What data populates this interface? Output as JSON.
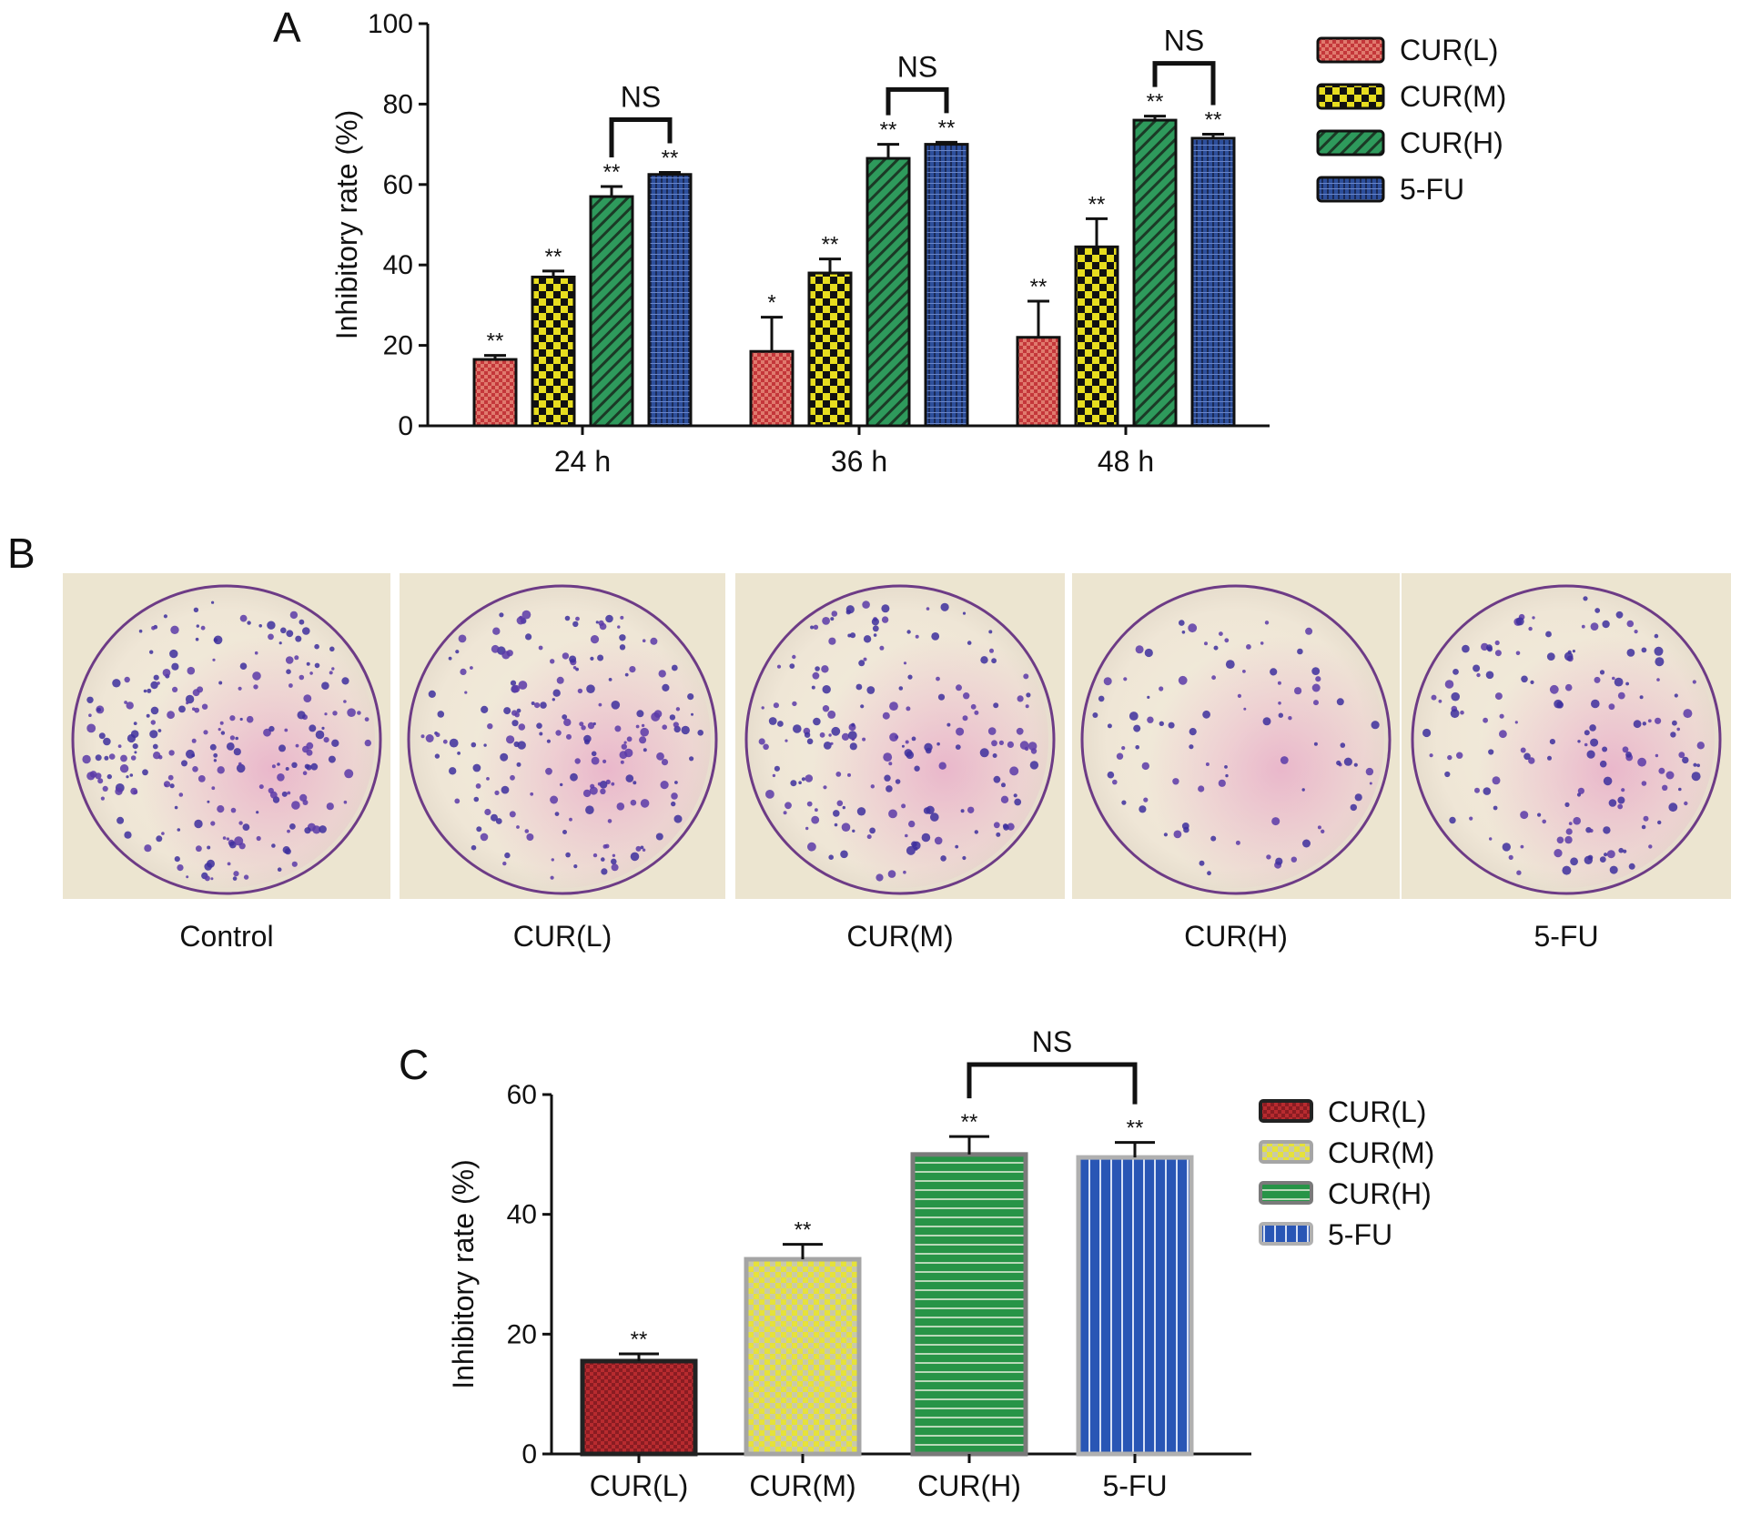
{
  "colors": {
    "cur_l": "#c4373a",
    "cur_m": "#e7dd1f",
    "cur_h": "#2e9a5c",
    "fu5": "#2d4f9c",
    "c_cur_l": "#b82b2f",
    "c_cur_m": "#e6e23a",
    "c_cur_h": "#279447",
    "c_fu5": "#2956b5"
  },
  "panels": {
    "a_letter": "A",
    "b_letter": "B",
    "c_letter": "C"
  },
  "chart_data": [
    {
      "id": "A",
      "type": "bar",
      "categories": [
        "24 h",
        "36 h",
        "48 h"
      ],
      "series": [
        {
          "name": "CUR(L)",
          "values": [
            16.5,
            18.5,
            22.0
          ],
          "errors": [
            1.0,
            8.5,
            9.0
          ],
          "sig": [
            "**",
            "*",
            "**"
          ]
        },
        {
          "name": "CUR(M)",
          "values": [
            37.0,
            38.0,
            44.5
          ],
          "errors": [
            1.5,
            3.5,
            7.0
          ],
          "sig": [
            "**",
            "**",
            "**"
          ]
        },
        {
          "name": "CUR(H)",
          "values": [
            57.0,
            66.5,
            76.0
          ],
          "errors": [
            2.5,
            3.5,
            1.0
          ],
          "sig": [
            "**",
            "**",
            "**"
          ]
        },
        {
          "name": "5-FU",
          "values": [
            62.5,
            70.0,
            71.5
          ],
          "errors": [
            0.5,
            0.5,
            1.0
          ],
          "sig": [
            "**",
            "**",
            "**"
          ]
        }
      ],
      "comparisons": [
        {
          "category": "24 h",
          "label": "NS"
        },
        {
          "category": "36 h",
          "label": "NS"
        },
        {
          "category": "48 h",
          "label": "NS"
        }
      ],
      "ylabel": "Inhibitory rate (%)",
      "ylim": [
        0,
        100
      ],
      "yticks": [
        0,
        20,
        40,
        60,
        80,
        100
      ],
      "legend": "right"
    },
    {
      "id": "C",
      "type": "bar",
      "categories": [
        "CUR(L)",
        "CUR(M)",
        "CUR(H)",
        "5-FU"
      ],
      "values": [
        15.5,
        32.5,
        50.0,
        49.5
      ],
      "errors": [
        1.2,
        2.5,
        3.0,
        2.5
      ],
      "sig": [
        "**",
        "**",
        "**",
        "**"
      ],
      "comparisons": [
        {
          "from": "CUR(H)",
          "to": "5-FU",
          "label": "NS"
        }
      ],
      "ylabel": "Inhibitory rate (%)",
      "ylim": [
        0,
        60
      ],
      "yticks": [
        0,
        20,
        40,
        60
      ],
      "legend_entries": [
        "CUR(L)",
        "CUR(M)",
        "CUR(H)",
        "5-FU"
      ],
      "legend": "right"
    }
  ],
  "photos": {
    "labels": [
      "Control",
      "CUR(L)",
      "CUR(M)",
      "CUR(H)",
      "5-FU"
    ],
    "colony_density": [
      0.9,
      0.75,
      0.7,
      0.35,
      0.6
    ]
  }
}
